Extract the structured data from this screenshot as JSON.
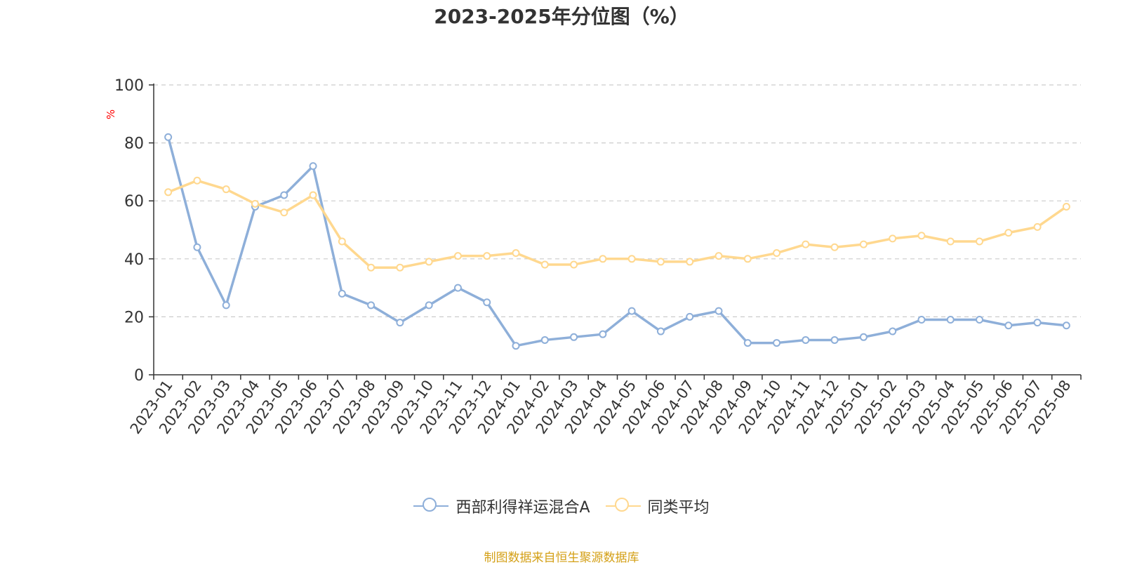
{
  "title": "2023-2025年分位图（%）",
  "source_text": "制图数据来自恒生聚源数据库",
  "colors": {
    "series_a": "#8eafd9",
    "series_b": "#ffd88f",
    "unit": "#ff0000",
    "source": "#d4a017"
  },
  "chart_data": {
    "type": "line",
    "title": "2023-2025年分位图（%）",
    "ylabel": "%",
    "ylim": [
      0,
      100
    ],
    "yticks": [
      0,
      20,
      40,
      60,
      80,
      100
    ],
    "grid": true,
    "legend_position": "bottom",
    "categories": [
      "2023-01",
      "2023-02",
      "2023-03",
      "2023-04",
      "2023-05",
      "2023-06",
      "2023-07",
      "2023-08",
      "2023-09",
      "2023-10",
      "2023-11",
      "2023-12",
      "2024-01",
      "2024-02",
      "2024-03",
      "2024-04",
      "2024-05",
      "2024-06",
      "2024-07",
      "2024-08",
      "2024-09",
      "2024-10",
      "2024-11",
      "2024-12",
      "2025-01",
      "2025-02",
      "2025-03",
      "2025-04",
      "2025-05",
      "2025-06",
      "2025-07",
      "2025-08"
    ],
    "series": [
      {
        "name": "西部利得祥运混合A",
        "values": [
          82,
          44,
          24,
          58,
          62,
          72,
          28,
          24,
          18,
          24,
          30,
          25,
          10,
          12,
          13,
          14,
          22,
          15,
          20,
          22,
          11,
          11,
          12,
          12,
          13,
          15,
          19,
          19,
          19,
          17,
          18,
          17
        ]
      },
      {
        "name": "同类平均",
        "values": [
          63,
          67,
          64,
          59,
          56,
          62,
          46,
          37,
          37,
          39,
          41,
          41,
          42,
          38,
          38,
          40,
          40,
          39,
          39,
          41,
          40,
          42,
          45,
          44,
          45,
          47,
          48,
          46,
          46,
          49,
          51,
          58
        ]
      }
    ]
  }
}
